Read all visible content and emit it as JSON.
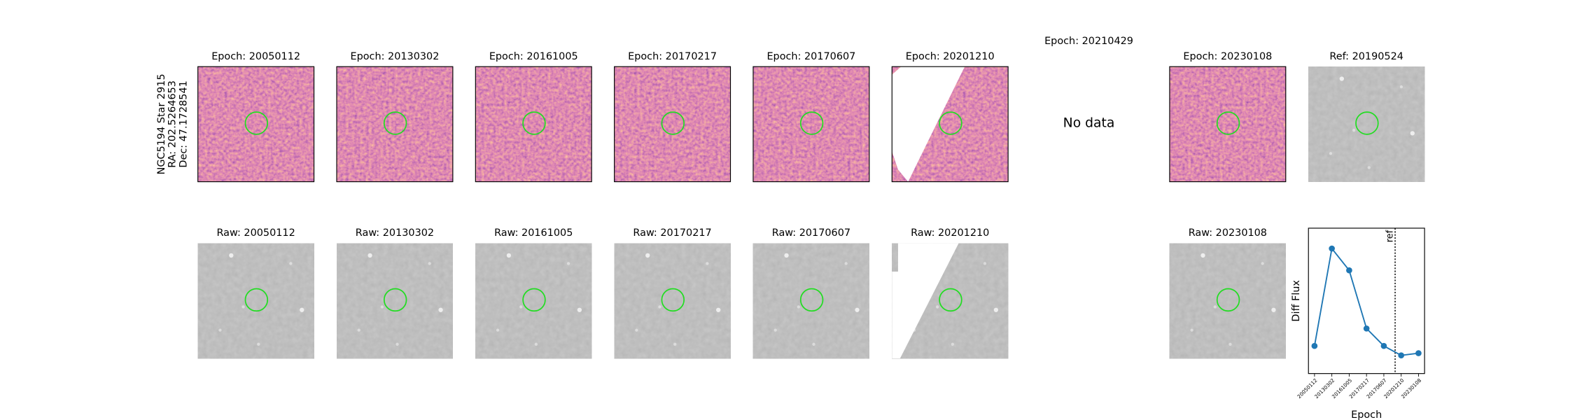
{
  "target": {
    "lines": [
      "NGC5194 Star 2915",
      "RA: 202.5264653",
      "Dec: 47.1728541"
    ]
  },
  "diff_panels": [
    {
      "title": "Epoch: 20050112"
    },
    {
      "title": "Epoch: 20130302"
    },
    {
      "title": "Epoch: 20161005"
    },
    {
      "title": "Epoch: 20170217"
    },
    {
      "title": "Epoch: 20170607"
    },
    {
      "title": "Epoch: 20201210"
    },
    {
      "title": "Epoch: 20210429",
      "note": "No data"
    },
    {
      "title": "Epoch: 20230108"
    }
  ],
  "ref_panel": {
    "title": "Ref: 20190524"
  },
  "raw_panels": [
    {
      "title": "Raw: 20050112"
    },
    {
      "title": "Raw: 20130302"
    },
    {
      "title": "Raw: 20161005"
    },
    {
      "title": "Raw: 20170217"
    },
    {
      "title": "Raw: 20170607"
    },
    {
      "title": "Raw: 20201210"
    },
    {
      "title": "Raw: 20230108"
    }
  ],
  "chart_data": {
    "type": "line",
    "xlabel": "Epoch",
    "ylabel": "Diff Flux",
    "ref_label": "ref",
    "categories": [
      "20050112",
      "20130302",
      "20161005",
      "20170217",
      "20170607",
      "20201210",
      "20230108"
    ],
    "values": [
      19,
      86,
      71,
      31,
      19,
      12.5,
      14
    ],
    "color": "#1f77b4",
    "ylim": [
      0,
      100
    ]
  }
}
